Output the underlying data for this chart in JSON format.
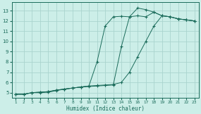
{
  "xlabel": "Humidex (Indice chaleur)",
  "bg_color": "#cceee8",
  "line_color": "#1a6b5a",
  "grid_color": "#aad4ce",
  "x_ticks": [
    1,
    2,
    3,
    4,
    5,
    6,
    7,
    8,
    9,
    10,
    11,
    12,
    13,
    14,
    15,
    16,
    17,
    18,
    19,
    20,
    21,
    22,
    23
  ],
  "y_ticks": [
    5,
    6,
    7,
    8,
    9,
    10,
    11,
    12,
    13
  ],
  "xlim": [
    0.5,
    23.5
  ],
  "ylim": [
    4.5,
    13.8
  ],
  "line1_x": [
    1,
    2,
    3,
    4,
    5,
    6,
    7,
    8,
    9,
    10,
    11,
    12,
    13,
    14,
    15,
    16,
    17,
    18,
    19,
    20,
    21,
    22,
    23
  ],
  "line1_y": [
    4.85,
    4.85,
    5.0,
    5.0,
    5.05,
    5.2,
    5.35,
    5.45,
    5.55,
    5.6,
    5.65,
    5.7,
    5.75,
    9.5,
    12.4,
    13.25,
    13.1,
    12.85,
    12.5,
    12.4,
    12.2,
    12.1,
    12.0
  ],
  "line2_x": [
    1,
    2,
    3,
    4,
    5,
    6,
    7,
    8,
    9,
    10,
    11,
    12,
    13,
    14,
    15,
    16,
    17,
    18,
    19,
    20,
    21,
    22,
    23
  ],
  "line2_y": [
    4.85,
    4.85,
    5.0,
    5.05,
    5.1,
    5.25,
    5.35,
    5.45,
    5.55,
    5.65,
    8.0,
    11.5,
    12.4,
    12.45,
    12.4,
    12.5,
    12.4,
    12.85,
    12.5,
    12.4,
    12.2,
    12.1,
    12.0
  ],
  "line3_x": [
    1,
    2,
    3,
    4,
    5,
    6,
    7,
    8,
    9,
    10,
    11,
    12,
    13,
    14,
    15,
    16,
    17,
    18,
    19,
    20,
    21,
    22,
    23
  ],
  "line3_y": [
    4.85,
    4.85,
    5.0,
    5.05,
    5.1,
    5.25,
    5.35,
    5.45,
    5.55,
    5.65,
    5.7,
    5.75,
    5.8,
    6.0,
    7.0,
    8.5,
    10.0,
    11.5,
    12.5,
    12.4,
    12.2,
    12.1,
    12.0
  ]
}
